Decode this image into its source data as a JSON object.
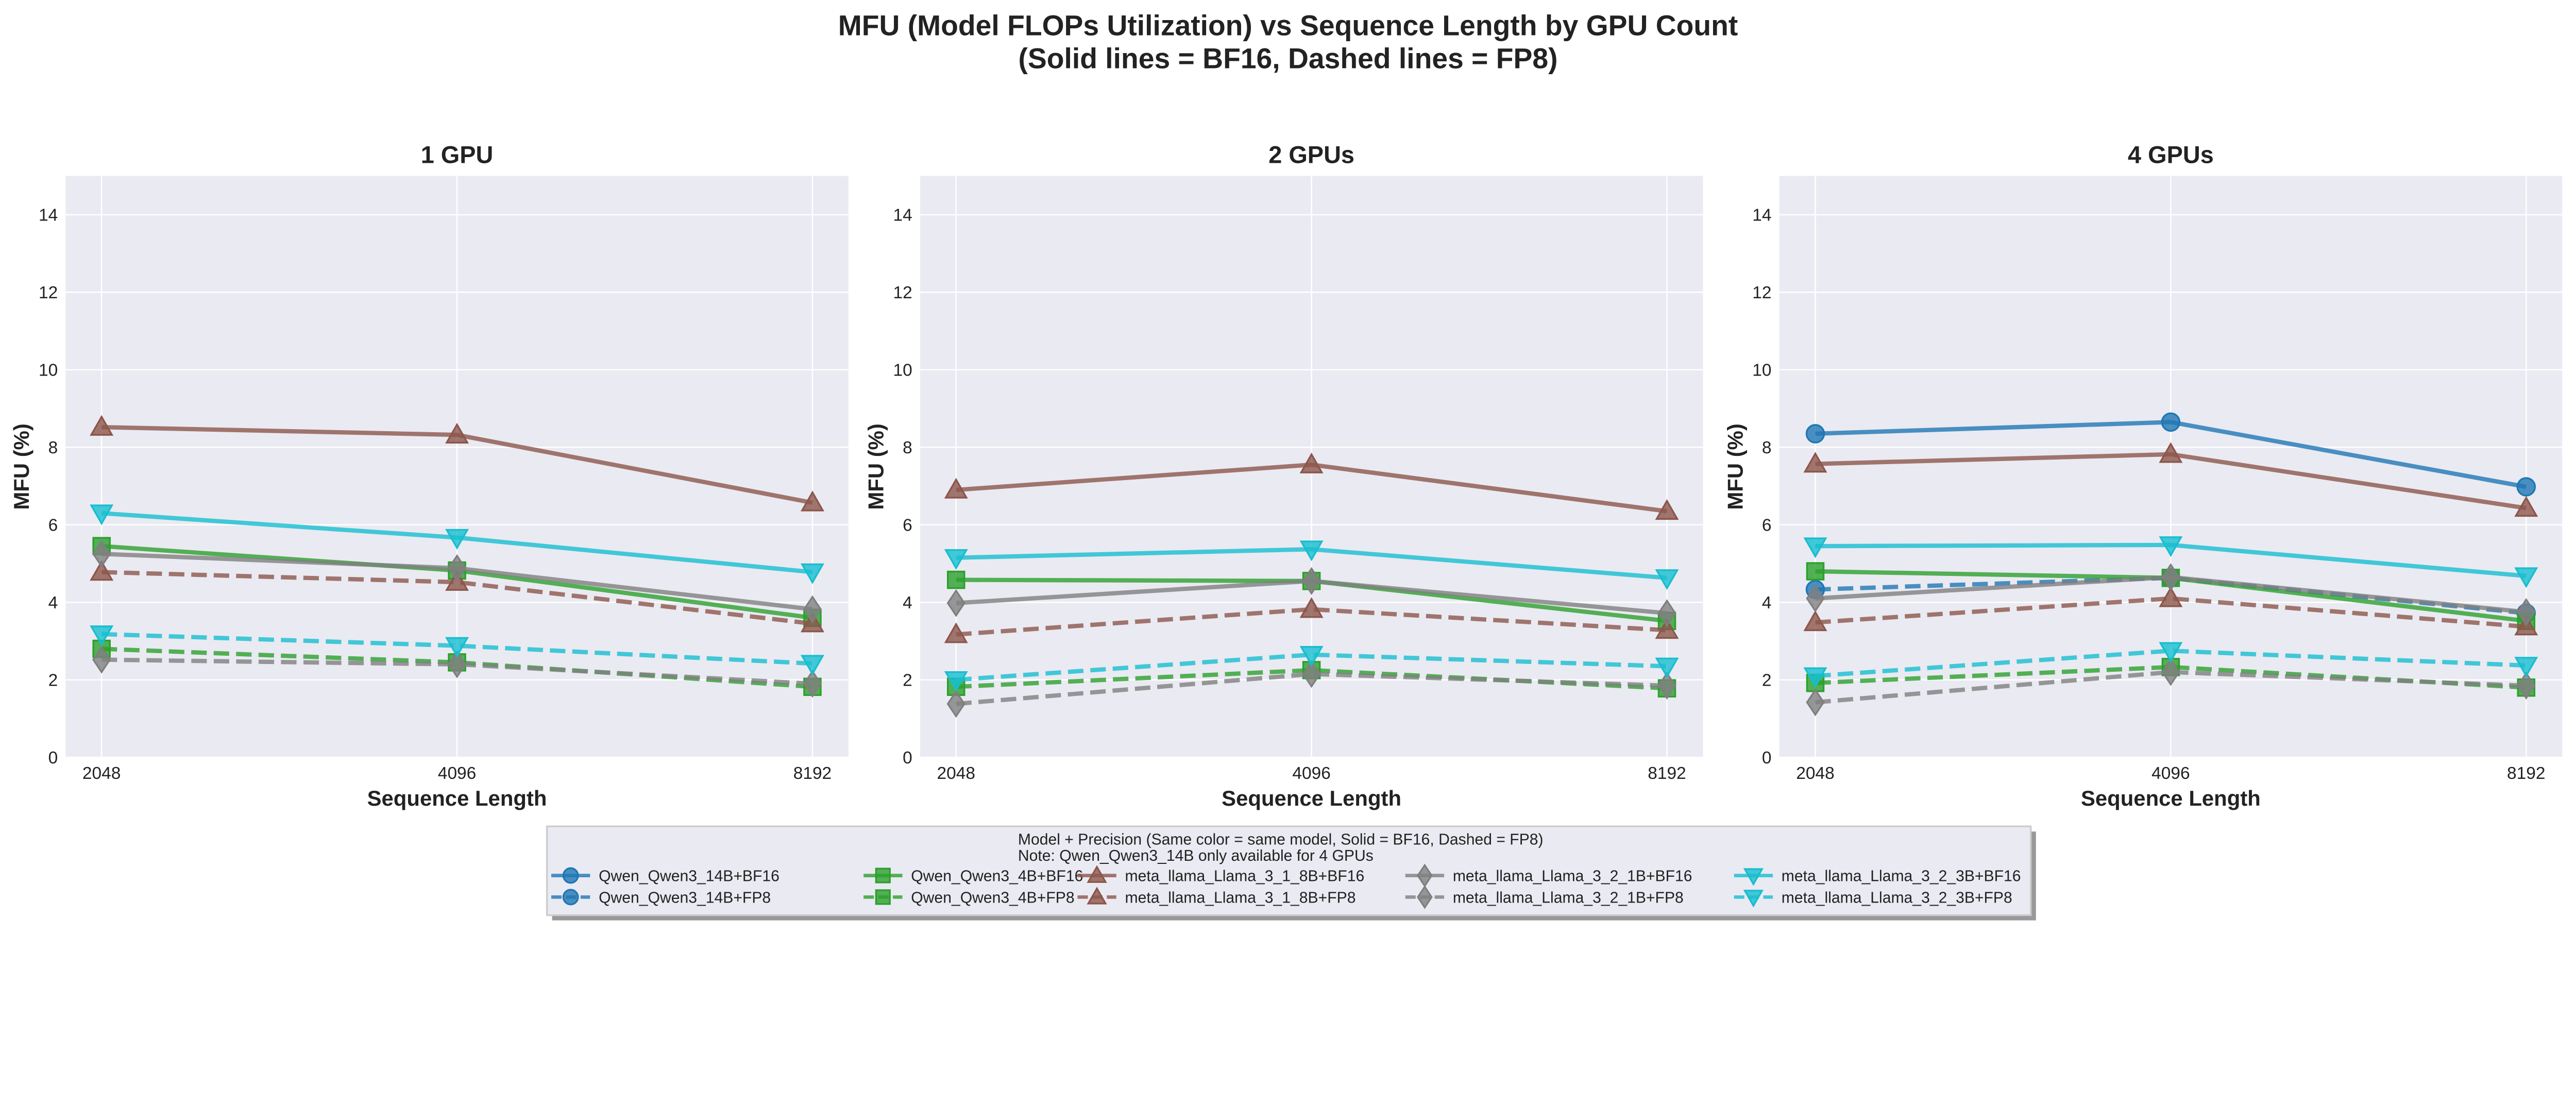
{
  "title_line1": "MFU (Model FLOPs Utilization) vs Sequence Length by GPU Count",
  "title_line2": "(Solid lines = BF16, Dashed lines = FP8)",
  "legend": {
    "title_line1": "Model + Precision (Same color = same model, Solid = BF16, Dashed = FP8)",
    "title_line2": "Note: Qwen_Qwen3_14B only available for 4 GPUs",
    "placement": "bottom-center"
  },
  "chart_data": [
    {
      "type": "line",
      "title": "1 GPU",
      "xlabel": "Sequence Length",
      "ylabel": "MFU (%)",
      "categories": [
        "2048",
        "4096",
        "8192"
      ],
      "ylim": [
        0,
        15
      ],
      "yticks": [
        0,
        2,
        4,
        6,
        8,
        10,
        12,
        14
      ],
      "grid": true,
      "series": [
        {
          "name": "Qwen_Qwen3_4B+BF16",
          "color": "#2ca02c",
          "marker": "square",
          "dashed": false,
          "values": [
            5.45,
            4.82,
            3.6
          ]
        },
        {
          "name": "Qwen_Qwen3_4B+FP8",
          "color": "#2ca02c",
          "marker": "square",
          "dashed": true,
          "values": [
            2.8,
            2.45,
            1.82
          ]
        },
        {
          "name": "meta_llama_Llama_3_1_8B+BF16",
          "color": "#8c564b",
          "marker": "triangle-up",
          "dashed": false,
          "values": [
            8.52,
            8.32,
            6.57
          ]
        },
        {
          "name": "meta_llama_Llama_3_1_8B+FP8",
          "color": "#8c564b",
          "marker": "triangle-up",
          "dashed": true,
          "values": [
            4.78,
            4.52,
            3.45
          ]
        },
        {
          "name": "meta_llama_Llama_3_2_1B+BF16",
          "color": "#7f7f7f",
          "marker": "diamond",
          "dashed": false,
          "values": [
            5.25,
            4.88,
            3.82
          ]
        },
        {
          "name": "meta_llama_Llama_3_2_1B+FP8",
          "color": "#7f7f7f",
          "marker": "diamond",
          "dashed": true,
          "values": [
            2.52,
            2.4,
            1.9
          ]
        },
        {
          "name": "meta_llama_Llama_3_2_3B+BF16",
          "color": "#17becf",
          "marker": "triangle-down",
          "dashed": false,
          "values": [
            6.3,
            5.67,
            4.78
          ]
        },
        {
          "name": "meta_llama_Llama_3_2_3B+FP8",
          "color": "#17becf",
          "marker": "triangle-down",
          "dashed": true,
          "values": [
            3.18,
            2.88,
            2.42
          ]
        }
      ]
    },
    {
      "type": "line",
      "title": "2 GPUs",
      "xlabel": "Sequence Length",
      "ylabel": "MFU (%)",
      "categories": [
        "2048",
        "4096",
        "8192"
      ],
      "ylim": [
        0,
        15
      ],
      "yticks": [
        0,
        2,
        4,
        6,
        8,
        10,
        12,
        14
      ],
      "grid": true,
      "series": [
        {
          "name": "Qwen_Qwen3_4B+BF16",
          "color": "#2ca02c",
          "marker": "square",
          "dashed": false,
          "values": [
            4.58,
            4.55,
            3.52
          ]
        },
        {
          "name": "Qwen_Qwen3_4B+FP8",
          "color": "#2ca02c",
          "marker": "square",
          "dashed": true,
          "values": [
            1.82,
            2.25,
            1.78
          ]
        },
        {
          "name": "meta_llama_Llama_3_1_8B+BF16",
          "color": "#8c564b",
          "marker": "triangle-up",
          "dashed": false,
          "values": [
            6.9,
            7.55,
            6.35
          ]
        },
        {
          "name": "meta_llama_Llama_3_1_8B+FP8",
          "color": "#8c564b",
          "marker": "triangle-up",
          "dashed": true,
          "values": [
            3.17,
            3.82,
            3.28
          ]
        },
        {
          "name": "meta_llama_Llama_3_2_1B+BF16",
          "color": "#7f7f7f",
          "marker": "diamond",
          "dashed": false,
          "values": [
            3.98,
            4.55,
            3.72
          ]
        },
        {
          "name": "meta_llama_Llama_3_2_1B+FP8",
          "color": "#7f7f7f",
          "marker": "diamond",
          "dashed": true,
          "values": [
            1.38,
            2.15,
            1.85
          ]
        },
        {
          "name": "meta_llama_Llama_3_2_3B+BF16",
          "color": "#17becf",
          "marker": "triangle-down",
          "dashed": false,
          "values": [
            5.15,
            5.37,
            4.63
          ]
        },
        {
          "name": "meta_llama_Llama_3_2_3B+FP8",
          "color": "#17becf",
          "marker": "triangle-down",
          "dashed": true,
          "values": [
            2.0,
            2.65,
            2.35
          ]
        }
      ]
    },
    {
      "type": "line",
      "title": "4 GPUs",
      "xlabel": "Sequence Length",
      "ylabel": "MFU (%)",
      "categories": [
        "2048",
        "4096",
        "8192"
      ],
      "ylim": [
        0,
        15
      ],
      "yticks": [
        0,
        2,
        4,
        6,
        8,
        10,
        12,
        14
      ],
      "grid": true,
      "series": [
        {
          "name": "Qwen_Qwen3_14B+BF16",
          "color": "#1f77b4",
          "marker": "circle",
          "dashed": false,
          "values": [
            8.35,
            8.65,
            6.98
          ]
        },
        {
          "name": "Qwen_Qwen3_14B+FP8",
          "color": "#1f77b4",
          "marker": "circle",
          "dashed": true,
          "values": [
            4.33,
            4.63,
            3.72
          ]
        },
        {
          "name": "Qwen_Qwen3_4B+BF16",
          "color": "#2ca02c",
          "marker": "square",
          "dashed": false,
          "values": [
            4.8,
            4.63,
            3.52
          ]
        },
        {
          "name": "Qwen_Qwen3_4B+FP8",
          "color": "#2ca02c",
          "marker": "square",
          "dashed": true,
          "values": [
            1.92,
            2.33,
            1.8
          ]
        },
        {
          "name": "meta_llama_Llama_3_1_8B+BF16",
          "color": "#8c564b",
          "marker": "triangle-up",
          "dashed": false,
          "values": [
            7.57,
            7.82,
            6.43
          ]
        },
        {
          "name": "meta_llama_Llama_3_1_8B+FP8",
          "color": "#8c564b",
          "marker": "triangle-up",
          "dashed": true,
          "values": [
            3.48,
            4.1,
            3.37
          ]
        },
        {
          "name": "meta_llama_Llama_3_2_1B+BF16",
          "color": "#7f7f7f",
          "marker": "diamond",
          "dashed": false,
          "values": [
            4.1,
            4.65,
            3.75
          ]
        },
        {
          "name": "meta_llama_Llama_3_2_1B+FP8",
          "color": "#7f7f7f",
          "marker": "diamond",
          "dashed": true,
          "values": [
            1.42,
            2.2,
            1.85
          ]
        },
        {
          "name": "meta_llama_Llama_3_2_3B+BF16",
          "color": "#17becf",
          "marker": "triangle-down",
          "dashed": false,
          "values": [
            5.45,
            5.48,
            4.68
          ]
        },
        {
          "name": "meta_llama_Llama_3_2_3B+FP8",
          "color": "#17becf",
          "marker": "triangle-down",
          "dashed": true,
          "values": [
            2.1,
            2.75,
            2.37
          ]
        }
      ]
    }
  ],
  "legend_entries": [
    {
      "name": "Qwen_Qwen3_14B+BF16",
      "color": "#1f77b4",
      "marker": "circle",
      "dashed": false
    },
    {
      "name": "Qwen_Qwen3_14B+FP8",
      "color": "#1f77b4",
      "marker": "circle",
      "dashed": true
    },
    {
      "name": "Qwen_Qwen3_4B+BF16",
      "color": "#2ca02c",
      "marker": "square",
      "dashed": false
    },
    {
      "name": "Qwen_Qwen3_4B+FP8",
      "color": "#2ca02c",
      "marker": "square",
      "dashed": true
    },
    {
      "name": "meta_llama_Llama_3_1_8B+BF16",
      "color": "#8c564b",
      "marker": "triangle-up",
      "dashed": false
    },
    {
      "name": "meta_llama_Llama_3_1_8B+FP8",
      "color": "#8c564b",
      "marker": "triangle-up",
      "dashed": true
    },
    {
      "name": "meta_llama_Llama_3_2_1B+BF16",
      "color": "#7f7f7f",
      "marker": "diamond",
      "dashed": false
    },
    {
      "name": "meta_llama_Llama_3_2_1B+FP8",
      "color": "#7f7f7f",
      "marker": "diamond",
      "dashed": true
    },
    {
      "name": "meta_llama_Llama_3_2_3B+BF16",
      "color": "#17becf",
      "marker": "triangle-down",
      "dashed": false
    },
    {
      "name": "meta_llama_Llama_3_2_3B+FP8",
      "color": "#17becf",
      "marker": "triangle-down",
      "dashed": true
    }
  ]
}
